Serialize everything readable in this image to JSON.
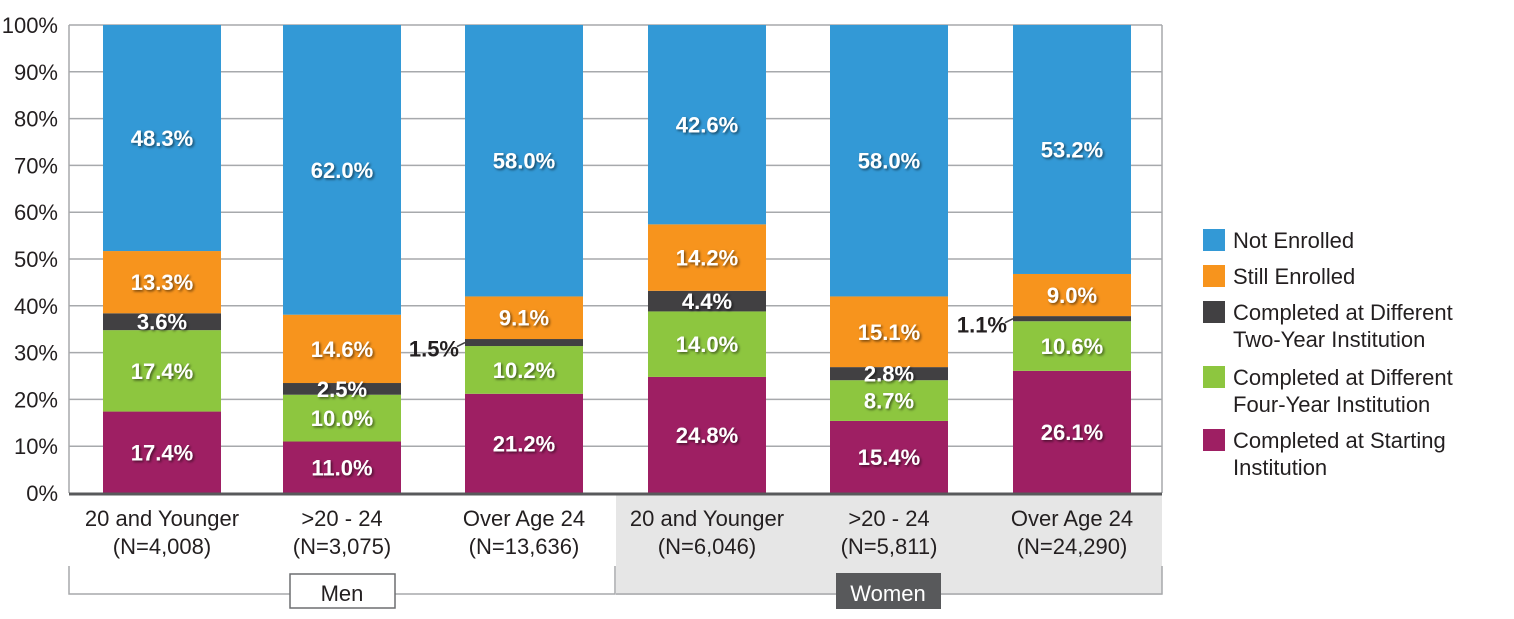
{
  "chart_data": {
    "type": "bar",
    "stacked": true,
    "title": "",
    "xlabel": "",
    "ylabel": "",
    "ylim": [
      0,
      100
    ],
    "yticks": [
      "0%",
      "10%",
      "20%",
      "30%",
      "40%",
      "50%",
      "60%",
      "70%",
      "80%",
      "90%",
      "100%"
    ],
    "grid": true,
    "legend_position": "right",
    "groups": [
      {
        "name": "Men",
        "categories": [
          0,
          1,
          2
        ]
      },
      {
        "name": "Women",
        "categories": [
          3,
          4,
          5
        ]
      }
    ],
    "categories": [
      {
        "label": "20 and Younger",
        "n": "(N=4,008)"
      },
      {
        "label": ">20 - 24",
        "n": "(N=3,075)"
      },
      {
        "label": "Over Age 24",
        "n": "(N=13,636)"
      },
      {
        "label": "20 and Younger",
        "n": "(N=6,046)"
      },
      {
        "label": ">20 - 24",
        "n": "(N=5,811)"
      },
      {
        "label": "Over Age 24",
        "n": "(N=24,290)"
      }
    ],
    "series": [
      {
        "name": "Completed at Starting Institution",
        "legend_lines": [
          "Completed at Starting",
          "Institution"
        ],
        "color": "#9e1f63",
        "values": [
          17.4,
          11.0,
          21.2,
          24.8,
          15.4,
          26.1
        ]
      },
      {
        "name": "Completed at Different Four-Year Institution",
        "legend_lines": [
          "Completed at Different",
          "Four-Year Institution"
        ],
        "color": "#8dc63f",
        "values": [
          17.4,
          10.0,
          10.2,
          14.0,
          8.7,
          10.6
        ]
      },
      {
        "name": "Completed at Different Two-Year Institution",
        "legend_lines": [
          "Completed at Different",
          "Two-Year Institution"
        ],
        "color": "#414042",
        "values": [
          3.6,
          2.5,
          1.5,
          4.4,
          2.8,
          1.1
        ]
      },
      {
        "name": "Still Enrolled",
        "legend_lines": [
          "Still Enrolled"
        ],
        "color": "#f7941d",
        "values": [
          13.3,
          14.6,
          9.1,
          14.2,
          15.1,
          9.0
        ]
      },
      {
        "name": "Not Enrolled",
        "legend_lines": [
          "Not Enrolled"
        ],
        "color": "#3399d6",
        "values": [
          48.3,
          62.0,
          58.0,
          42.6,
          58.0,
          53.2
        ]
      }
    ],
    "value_suffix": "%"
  }
}
